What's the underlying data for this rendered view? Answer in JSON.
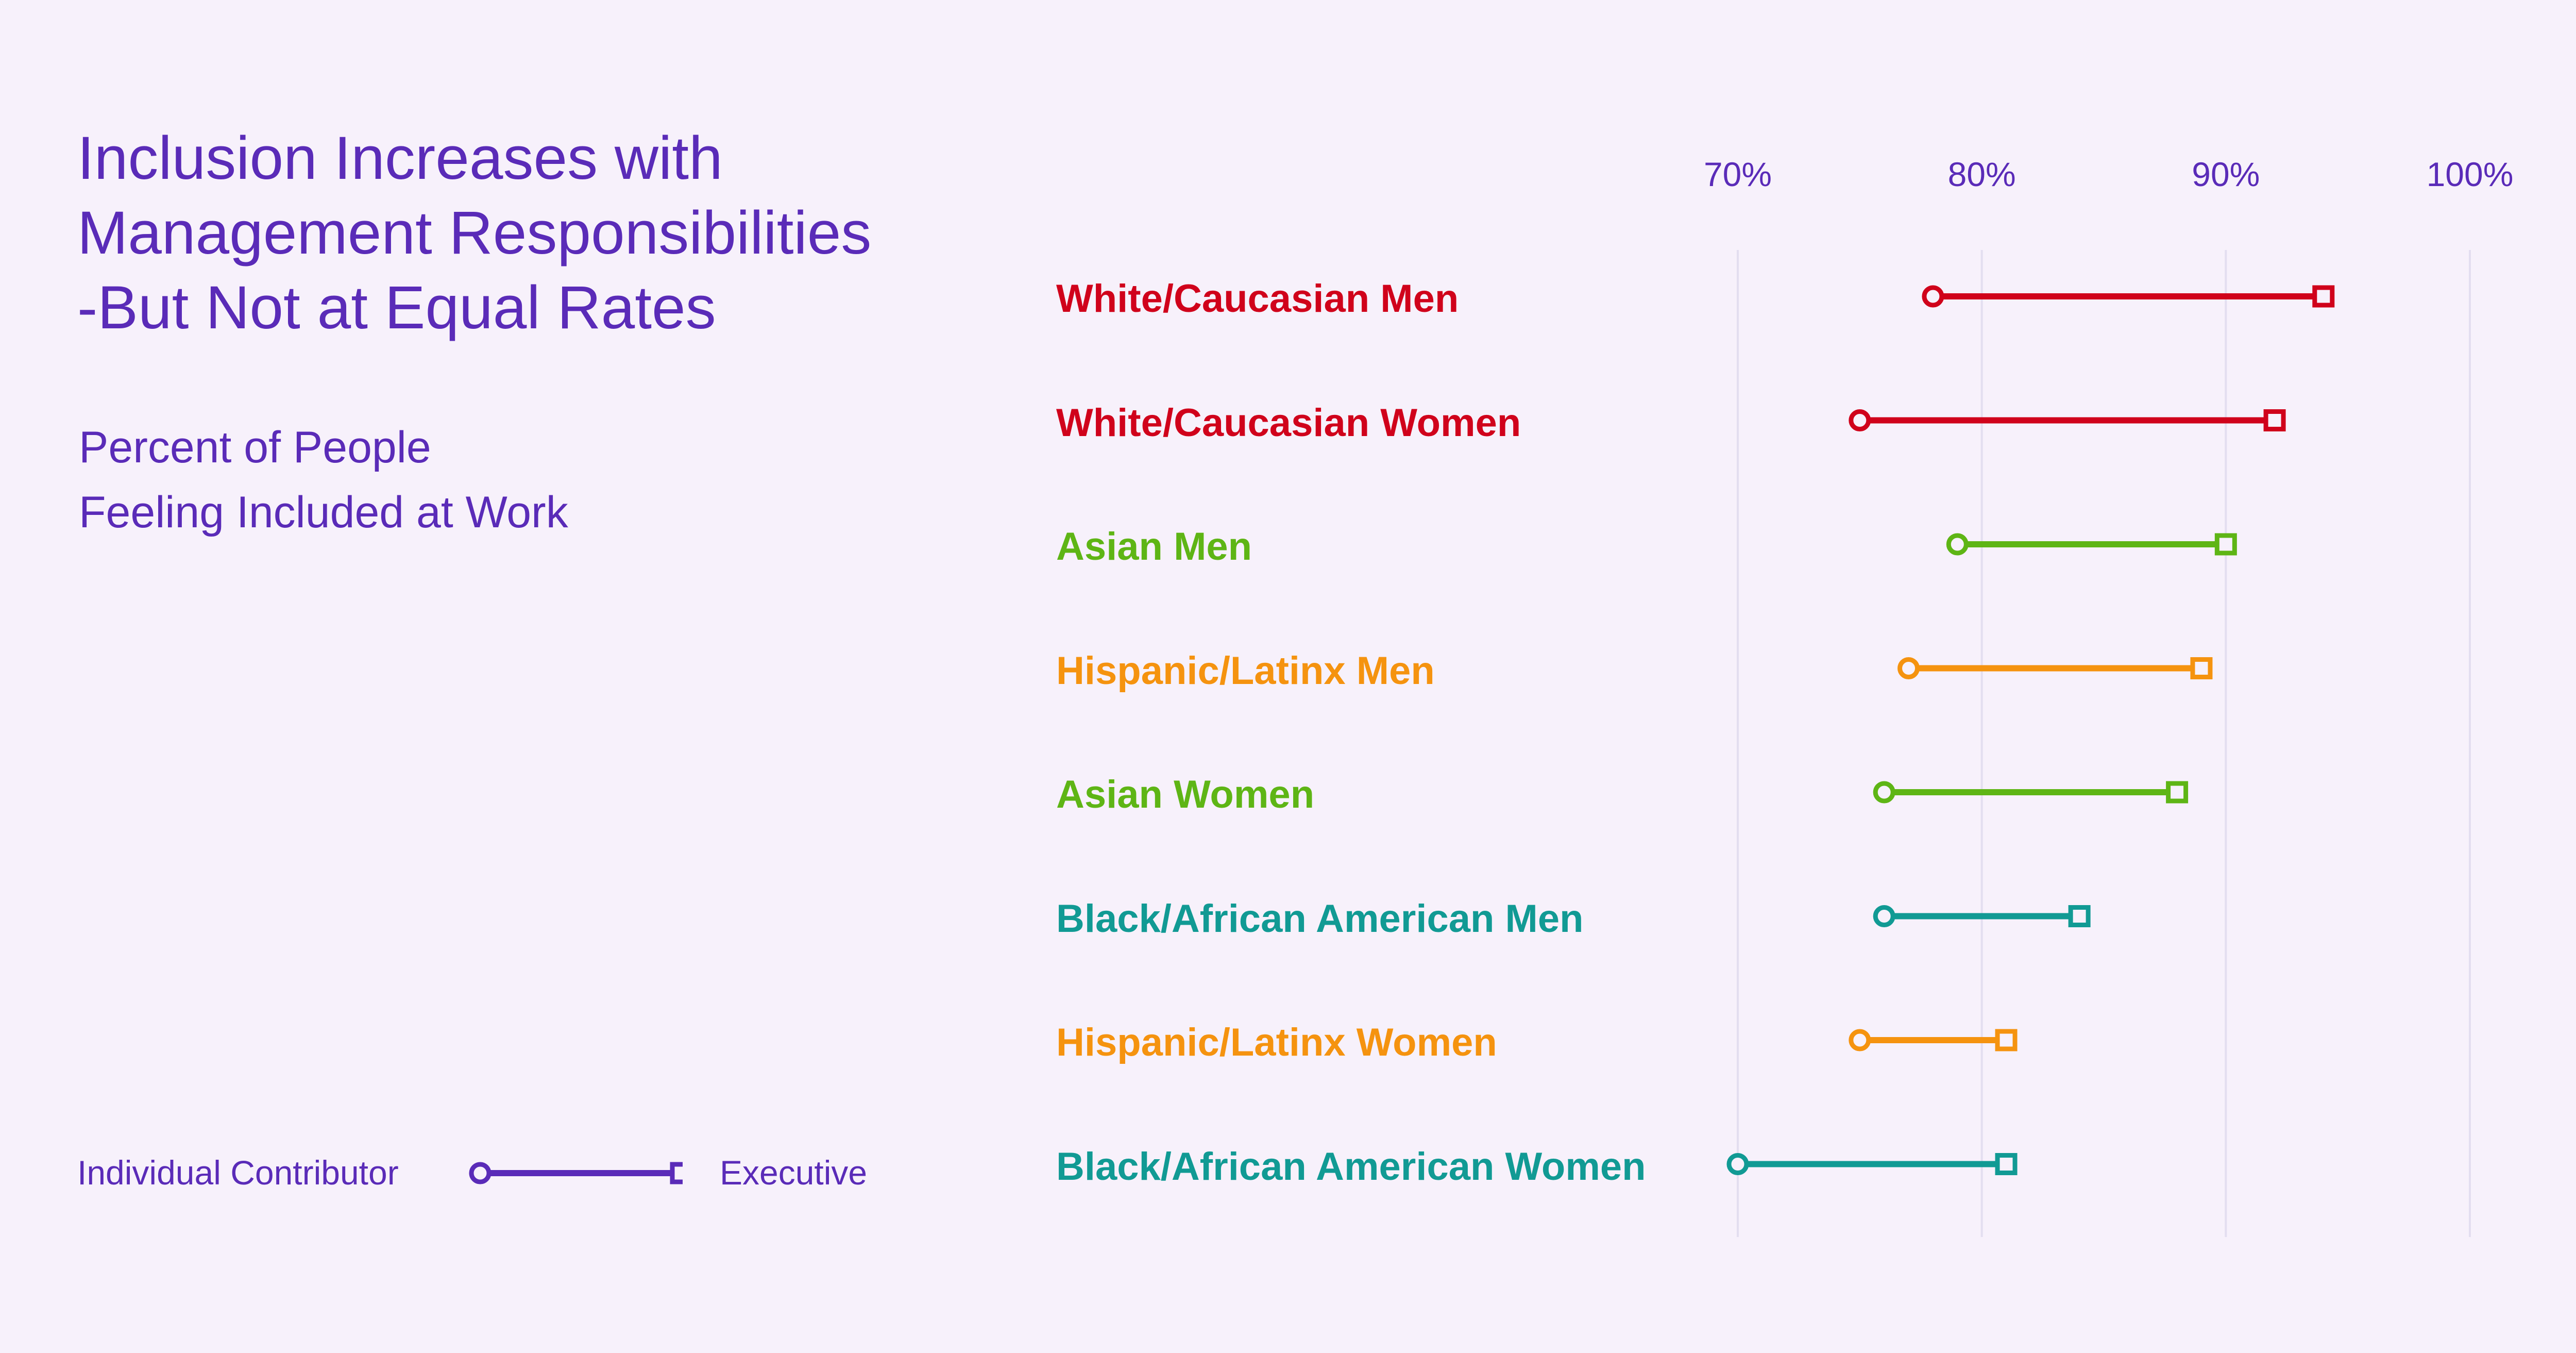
{
  "title_lines": [
    "Inclusion Increases with",
    "Management Responsibilities",
    "-But Not at Equal Rates"
  ],
  "subtitle_lines": [
    "Percent of People",
    "Feeling Included at Work"
  ],
  "legend": {
    "start_label": "Individual Contributor",
    "end_label": "Executive",
    "color": "#5a2bb8"
  },
  "chart_data": {
    "type": "dumbbell",
    "title": "Inclusion Increases with Management Responsibilities -But Not at Equal Rates",
    "subtitle": "Percent of People Feeling Included at Work",
    "x_ticks": [
      "70%",
      "80%",
      "90%",
      "100%"
    ],
    "xlim": [
      70,
      100
    ],
    "grid": true,
    "legend_position": "bottom-left",
    "series": [
      {
        "name": "Individual Contributor",
        "marker": "circle"
      },
      {
        "name": "Executive",
        "marker": "square"
      }
    ],
    "rows": [
      {
        "label": "White/Caucasian Men",
        "individual_contributor": 78,
        "executive": 94,
        "color": "#d0021b"
      },
      {
        "label": "White/Caucasian Women",
        "individual_contributor": 75,
        "executive": 92,
        "color": "#d0021b"
      },
      {
        "label": "Asian Men",
        "individual_contributor": 79,
        "executive": 90,
        "color": "#5eb515"
      },
      {
        "label": "Hispanic/Latinx Men",
        "individual_contributor": 77,
        "executive": 89,
        "color": "#f5930f"
      },
      {
        "label": "Asian Women",
        "individual_contributor": 76,
        "executive": 88,
        "color": "#5eb515"
      },
      {
        "label": "Black/African American Men",
        "individual_contributor": 76,
        "executive": 84,
        "color": "#119a94"
      },
      {
        "label": "Hispanic/Latinx Women",
        "individual_contributor": 75,
        "executive": 81,
        "color": "#f5930f"
      },
      {
        "label": "Black/African American Women",
        "individual_contributor": 70,
        "executive": 81,
        "color": "#119a94"
      }
    ]
  }
}
